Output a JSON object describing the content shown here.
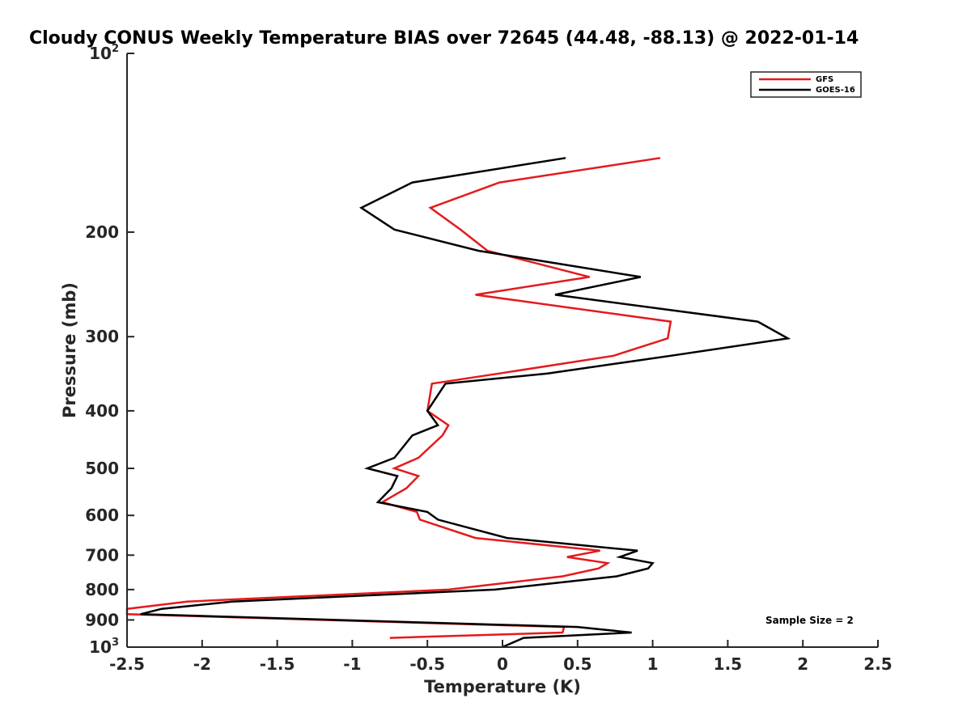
{
  "chart_data": {
    "type": "line",
    "title": "Cloudy CONUS Weekly Temperature BIAS over 72645 (44.48, -88.13) @ 2022-01-14",
    "xlabel": "Temperature (K)",
    "ylabel": "Pressure (mb)",
    "xlim": [
      -2.5,
      2.5
    ],
    "ylim": [
      100,
      1000
    ],
    "y_scale": "log",
    "y_reversed": true,
    "grid": false,
    "legend_position": "top-right",
    "x_ticks": [
      "-2.5",
      "-2",
      "-1.5",
      "-1",
      "-0.5",
      "0",
      "0.5",
      "1",
      "1.5",
      "2",
      "2.5"
    ],
    "x_tick_values": [
      -2.5,
      -2,
      -1.5,
      -1,
      -0.5,
      0,
      0.5,
      1,
      1.5,
      2,
      2.5
    ],
    "y_tick_values": [
      100,
      200,
      300,
      400,
      500,
      600,
      700,
      800,
      900,
      1000
    ],
    "y_tick_labels": [
      {
        "base": "10",
        "sup": "2"
      },
      {
        "base": "200",
        "sup": ""
      },
      {
        "base": "300",
        "sup": ""
      },
      {
        "base": "400",
        "sup": ""
      },
      {
        "base": "500",
        "sup": ""
      },
      {
        "base": "600",
        "sup": ""
      },
      {
        "base": "700",
        "sup": ""
      },
      {
        "base": "800",
        "sup": ""
      },
      {
        "base": "900",
        "sup": ""
      },
      {
        "base": "10",
        "sup": "3"
      }
    ],
    "annotation": "Sample Size = 2",
    "series": [
      {
        "name": "GFS",
        "color": "#e41a1c",
        "points": [
          [
            1.05,
            150
          ],
          [
            -0.02,
            165
          ],
          [
            -0.48,
            182
          ],
          [
            -0.28,
            198
          ],
          [
            -0.1,
            215
          ],
          [
            0.58,
            238
          ],
          [
            -0.18,
            255
          ],
          [
            1.12,
            283
          ],
          [
            1.1,
            302
          ],
          [
            0.74,
            323
          ],
          [
            -0.02,
            346
          ],
          [
            -0.47,
            360
          ],
          [
            -0.5,
            400
          ],
          [
            -0.36,
            423
          ],
          [
            -0.4,
            440
          ],
          [
            -0.56,
            480
          ],
          [
            -0.72,
            500
          ],
          [
            -0.56,
            515
          ],
          [
            -0.64,
            540
          ],
          [
            -0.8,
            570
          ],
          [
            -0.57,
            592
          ],
          [
            -0.55,
            610
          ],
          [
            -0.18,
            655
          ],
          [
            0.65,
            688
          ],
          [
            0.43,
            705
          ],
          [
            0.7,
            722
          ],
          [
            0.64,
            737
          ],
          [
            0.4,
            760
          ],
          [
            -0.36,
            800
          ],
          [
            -2.1,
            838
          ],
          [
            -2.5,
            862
          ],
          [
            -2.5,
            880
          ],
          [
            0.41,
            925
          ],
          [
            0.4,
            945
          ],
          [
            -0.75,
            965
          ]
        ]
      },
      {
        "name": "GOES-16",
        "color": "#000000",
        "points": [
          [
            0.42,
            150
          ],
          [
            -0.6,
            165
          ],
          [
            -0.94,
            182
          ],
          [
            -0.72,
            198
          ],
          [
            -0.16,
            215
          ],
          [
            0.92,
            238
          ],
          [
            0.35,
            255
          ],
          [
            1.7,
            283
          ],
          [
            1.9,
            302
          ],
          [
            1.12,
            323
          ],
          [
            0.3,
            346
          ],
          [
            -0.38,
            360
          ],
          [
            -0.5,
            400
          ],
          [
            -0.43,
            423
          ],
          [
            -0.6,
            440
          ],
          [
            -0.72,
            480
          ],
          [
            -0.9,
            500
          ],
          [
            -0.7,
            515
          ],
          [
            -0.74,
            540
          ],
          [
            -0.83,
            570
          ],
          [
            -0.5,
            592
          ],
          [
            -0.43,
            610
          ],
          [
            0.03,
            655
          ],
          [
            0.9,
            688
          ],
          [
            0.78,
            705
          ],
          [
            1.0,
            722
          ],
          [
            0.97,
            737
          ],
          [
            0.76,
            760
          ],
          [
            -0.05,
            800
          ],
          [
            -1.8,
            838
          ],
          [
            -2.27,
            862
          ],
          [
            -2.41,
            880
          ],
          [
            0.5,
            925
          ],
          [
            0.86,
            945
          ],
          [
            0.14,
            965
          ],
          [
            0.0,
            1000
          ]
        ]
      }
    ]
  }
}
